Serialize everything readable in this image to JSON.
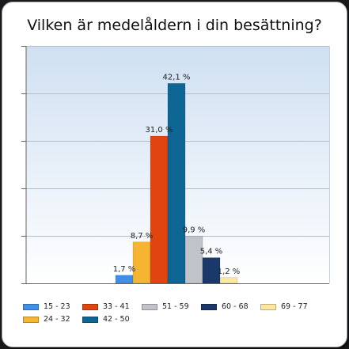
{
  "chart_data": {
    "type": "bar",
    "title": "Vilken är medelåldern i din besättning?",
    "ylim": [
      0,
      50
    ],
    "grid": true,
    "legend_position": "bottom",
    "series": [
      {
        "name": "15 - 23",
        "value": 1.7,
        "label": "1,7 %",
        "color": "#3f8fe8"
      },
      {
        "name": "24 - 32",
        "value": 8.7,
        "label": "8,7 %",
        "color": "#f5b533"
      },
      {
        "name": "33 - 41",
        "value": 31.0,
        "label": "31,0 %",
        "color": "#e0440f"
      },
      {
        "name": "42 - 50",
        "value": 42.1,
        "label": "42,1 %",
        "color": "#0d6694"
      },
      {
        "name": "51 - 59",
        "value": 9.9,
        "label": "9,9 %",
        "color": "#c0c3c9"
      },
      {
        "name": "60 - 68",
        "value": 5.4,
        "label": "5,4 %",
        "color": "#1a3869"
      },
      {
        "name": "69 - 77",
        "value": 1.2,
        "label": "1,2 %",
        "color": "#fbe7a1"
      }
    ]
  }
}
